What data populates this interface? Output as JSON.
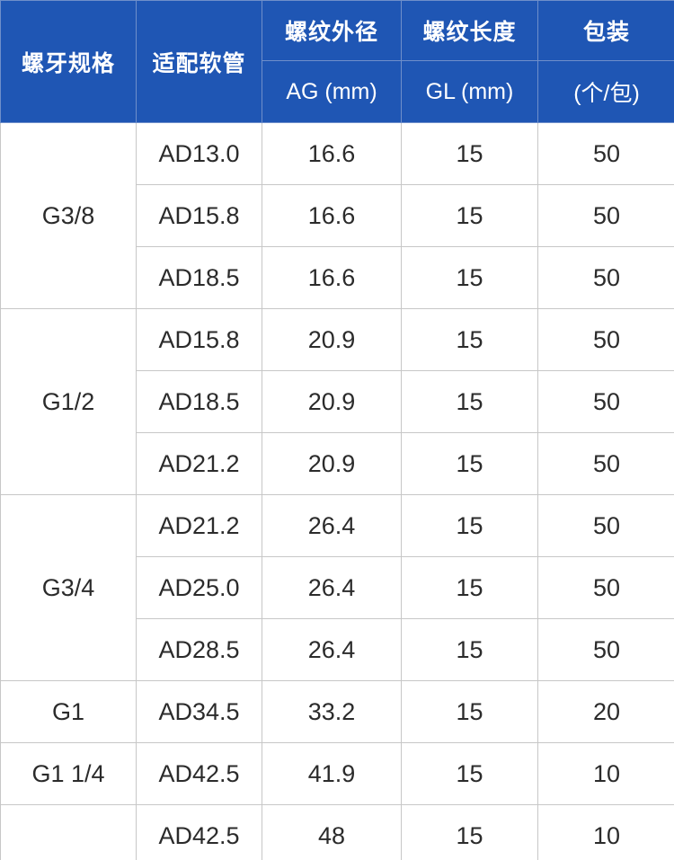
{
  "header": {
    "thread_spec": "螺牙规格",
    "hose": "适配软管",
    "ag_title": "螺纹外径",
    "ag_unit": "AG (mm)",
    "gl_title": "螺纹长度",
    "gl_unit": "GL (mm)",
    "pack_title": "包装",
    "pack_unit": "(个/包)"
  },
  "groups": [
    {
      "thread": "G3/8",
      "rows": [
        {
          "hose": "AD13.0",
          "ag": "16.6",
          "gl": "15",
          "pack": "50"
        },
        {
          "hose": "AD15.8",
          "ag": "16.6",
          "gl": "15",
          "pack": "50"
        },
        {
          "hose": "AD18.5",
          "ag": "16.6",
          "gl": "15",
          "pack": "50"
        }
      ]
    },
    {
      "thread": "G1/2",
      "rows": [
        {
          "hose": "AD15.8",
          "ag": "20.9",
          "gl": "15",
          "pack": "50"
        },
        {
          "hose": "AD18.5",
          "ag": "20.9",
          "gl": "15",
          "pack": "50"
        },
        {
          "hose": "AD21.2",
          "ag": "20.9",
          "gl": "15",
          "pack": "50"
        }
      ]
    },
    {
      "thread": "G3/4",
      "rows": [
        {
          "hose": "AD21.2",
          "ag": "26.4",
          "gl": "15",
          "pack": "50"
        },
        {
          "hose": "AD25.0",
          "ag": "26.4",
          "gl": "15",
          "pack": "50"
        },
        {
          "hose": "AD28.5",
          "ag": "26.4",
          "gl": "15",
          "pack": "50"
        }
      ]
    },
    {
      "thread": "G1",
      "rows": [
        {
          "hose": "AD34.5",
          "ag": "33.2",
          "gl": "15",
          "pack": "20"
        }
      ]
    },
    {
      "thread": "G1 1/4",
      "rows": [
        {
          "hose": "AD42.5",
          "ag": "41.9",
          "gl": "15",
          "pack": "10"
        }
      ]
    },
    {
      "thread": "",
      "rows": [
        {
          "hose": "AD42.5",
          "ag": "48",
          "gl": "15",
          "pack": "10"
        }
      ]
    }
  ]
}
